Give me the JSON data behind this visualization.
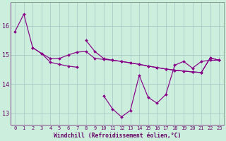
{
  "xlabel": "Windchill (Refroidissement éolien,°C)",
  "background_color": "#cceedd",
  "line_color": "#880088",
  "grid_color": "#aacccc",
  "series": [
    [
      15.8,
      16.4,
      15.25,
      15.05,
      14.88,
      14.88,
      15.0,
      15.1,
      15.12,
      14.88,
      14.85,
      14.82,
      14.78,
      14.73,
      14.68,
      14.62,
      14.57,
      14.52,
      14.48,
      14.45,
      14.42,
      14.4,
      14.9,
      14.82
    ],
    [
      null,
      null,
      15.25,
      15.05,
      14.75,
      14.68,
      14.62,
      14.58,
      null,
      null,
      null,
      null,
      null,
      null,
      null,
      null,
      null,
      null,
      null,
      null,
      null,
      null,
      null,
      null
    ],
    [
      null,
      null,
      null,
      null,
      null,
      null,
      null,
      null,
      15.5,
      15.12,
      14.88,
      14.82,
      14.78,
      14.73,
      14.68,
      14.62,
      14.57,
      14.52,
      14.48,
      14.45,
      14.42,
      14.4,
      14.9,
      14.82
    ],
    [
      null,
      null,
      null,
      null,
      null,
      null,
      null,
      null,
      null,
      null,
      13.6,
      13.15,
      12.88,
      13.1,
      14.3,
      13.55,
      13.35,
      13.65,
      14.65,
      14.78,
      14.55,
      14.78,
      14.82,
      14.82
    ]
  ],
  "xlim": [
    -0.5,
    23.5
  ],
  "ylim": [
    12.6,
    16.8
  ],
  "yticks": [
    13,
    14,
    15,
    16
  ],
  "xticks": [
    0,
    1,
    2,
    3,
    4,
    5,
    6,
    7,
    8,
    9,
    10,
    11,
    12,
    13,
    14,
    15,
    16,
    17,
    18,
    19,
    20,
    21,
    22,
    23
  ]
}
